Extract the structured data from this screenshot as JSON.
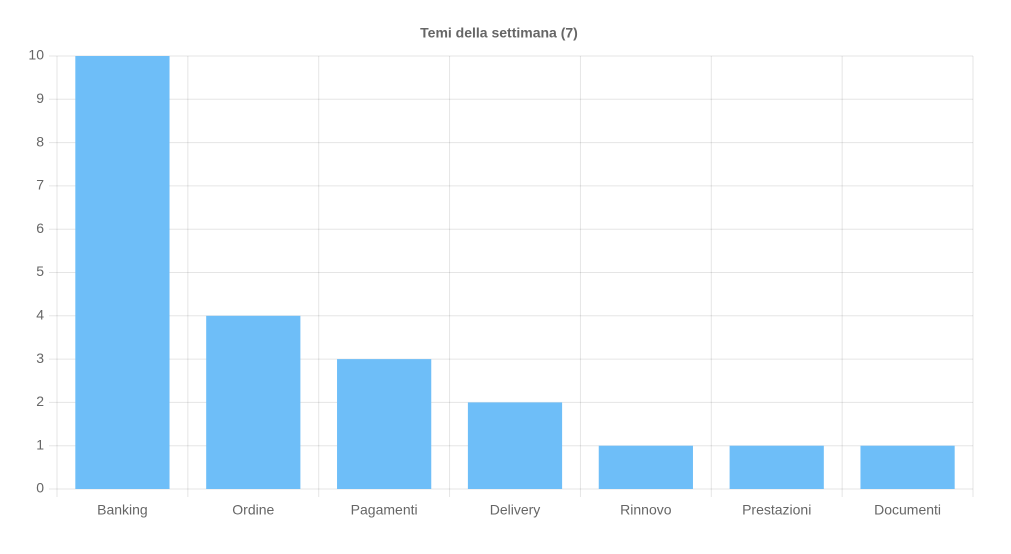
{
  "chart_data": {
    "type": "bar",
    "title": "Temi della settimana (7)",
    "categories": [
      "Banking",
      "Ordine",
      "Pagamenti",
      "Delivery",
      "Rinnovo",
      "Prestazioni",
      "Documenti"
    ],
    "values": [
      10,
      4,
      3,
      2,
      1,
      1,
      1
    ],
    "color": "#6ebef8",
    "ylim": [
      0,
      10
    ],
    "yticks": [
      0,
      1,
      2,
      3,
      4,
      5,
      6,
      7,
      8,
      9,
      10
    ],
    "grid": true
  }
}
